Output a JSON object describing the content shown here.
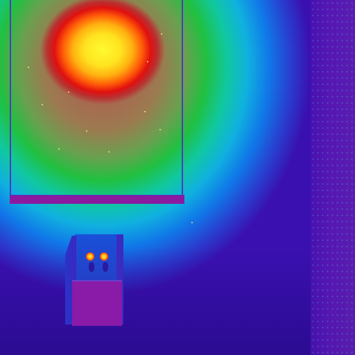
{
  "image": {
    "kind": "thermal-heat-map",
    "palette": [
      "#3a10b0",
      "#1078e8",
      "#10c8a0",
      "#20c040",
      "#e01010",
      "#ffb010",
      "#fffa30"
    ],
    "text": []
  }
}
